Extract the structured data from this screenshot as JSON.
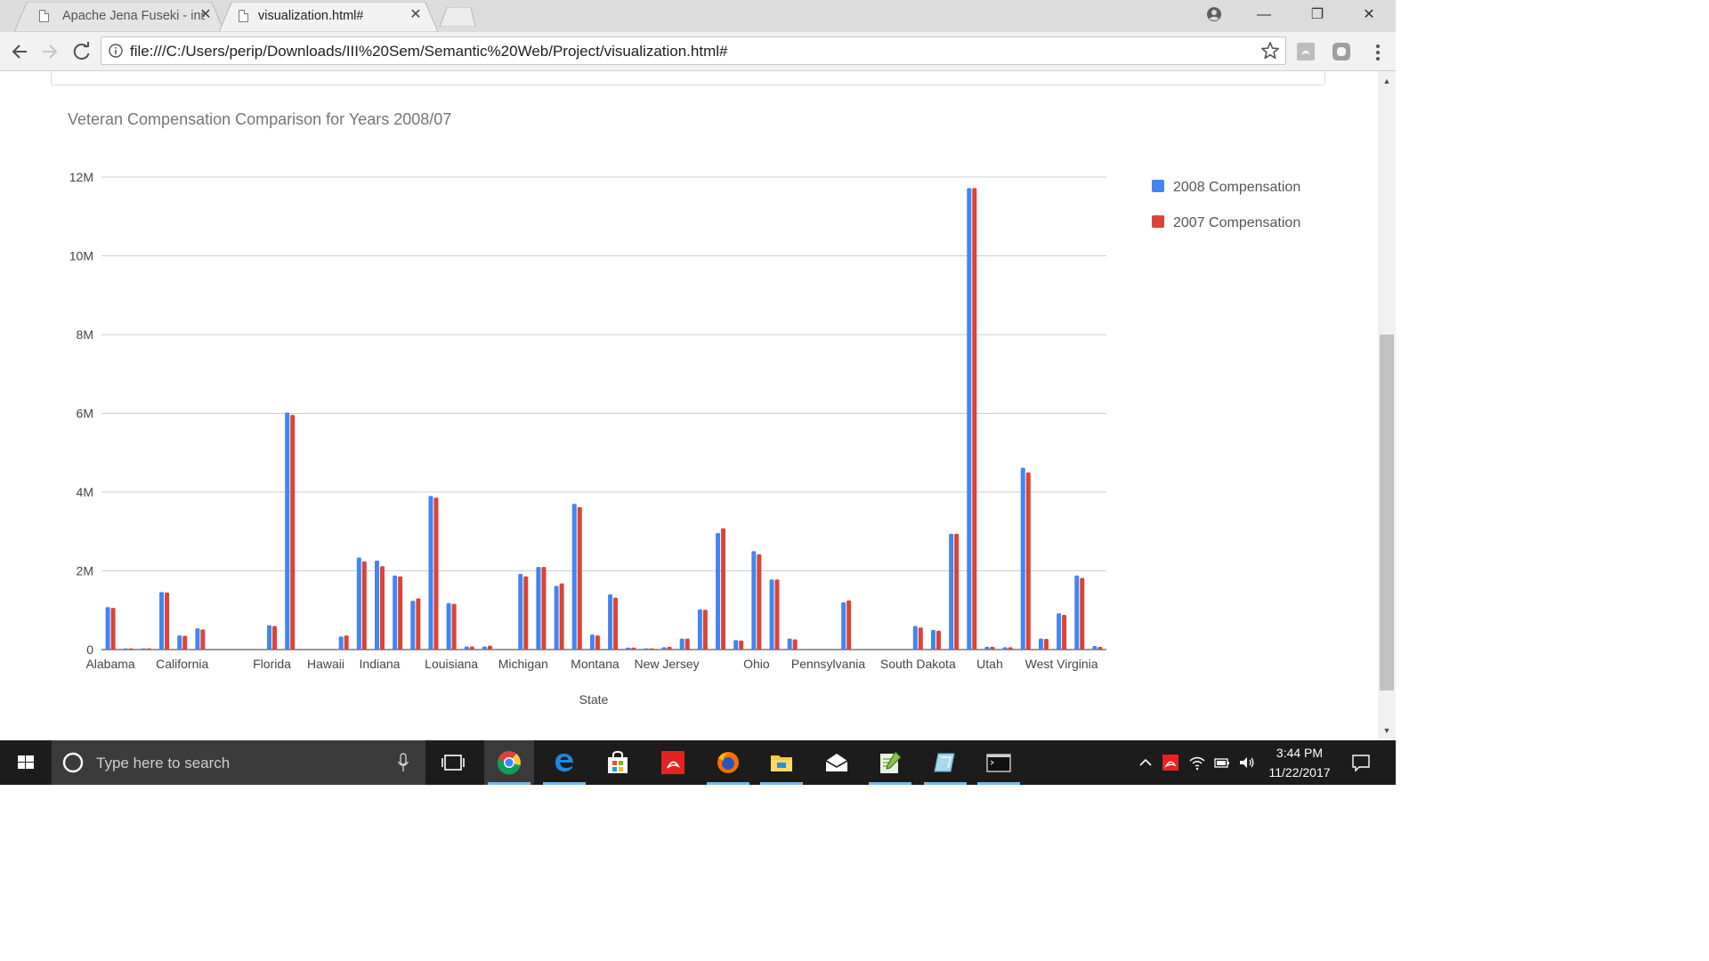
{
  "browser": {
    "tabs": [
      {
        "title": "Apache Jena Fuseki - insp",
        "close": "✕",
        "active": false
      },
      {
        "title": "visualization.html#",
        "close": "✕",
        "active": true
      }
    ],
    "url": "file:///C:/Users/perip/Downloads/III%20Sem/Semantic%20Web/Project/visualization.html#",
    "window_buttons": {
      "minimize": "—",
      "maximize": "❐",
      "close": "✕"
    }
  },
  "chart_data": {
    "type": "bar",
    "title": "Veteran Compensation Comparison for Years 2008/07",
    "xlabel": "State",
    "ylabel": "",
    "ylim": [
      0,
      12000000
    ],
    "y_ticks": [
      0,
      2000000,
      4000000,
      6000000,
      8000000,
      10000000,
      12000000
    ],
    "y_tick_labels": [
      "0",
      "2M",
      "4M",
      "6M",
      "8M",
      "10M",
      "12M"
    ],
    "x_tick_labels": [
      {
        "index": 0,
        "label": "Alabama"
      },
      {
        "index": 4,
        "label": "California"
      },
      {
        "index": 9,
        "label": "Florida"
      },
      {
        "index": 12,
        "label": "Hawaii"
      },
      {
        "index": 15,
        "label": "Indiana"
      },
      {
        "index": 19,
        "label": "Louisiana"
      },
      {
        "index": 23,
        "label": "Michigan"
      },
      {
        "index": 27,
        "label": "Montana"
      },
      {
        "index": 31,
        "label": "New Jersey"
      },
      {
        "index": 36,
        "label": "Ohio"
      },
      {
        "index": 40,
        "label": "Pennsylvania"
      },
      {
        "index": 45,
        "label": "South Dakota"
      },
      {
        "index": 49,
        "label": "Utah"
      },
      {
        "index": 53,
        "label": "West Virginia"
      }
    ],
    "legend_position": "right",
    "grid": true,
    "series": [
      {
        "name": "2008 Compensation",
        "color": "#4285f4",
        "values": [
          1080000,
          30000,
          30000,
          1460000,
          360000,
          540000,
          0,
          0,
          0,
          620000,
          6020000,
          0,
          0,
          330000,
          2340000,
          2260000,
          1880000,
          1240000,
          3900000,
          1180000,
          80000,
          80000,
          0,
          1920000,
          2100000,
          1620000,
          3700000,
          380000,
          1400000,
          50000,
          30000,
          60000,
          280000,
          1020000,
          2960000,
          240000,
          2500000,
          1780000,
          280000,
          0,
          0,
          1200000,
          0,
          0,
          0,
          600000,
          500000,
          2940000,
          11720000,
          70000,
          60000,
          4620000,
          280000,
          920000,
          1880000,
          90000
        ]
      },
      {
        "name": "2007 Compensation",
        "color": "#db4437",
        "values": [
          1060000,
          30000,
          30000,
          1450000,
          350000,
          510000,
          0,
          0,
          0,
          600000,
          5960000,
          0,
          0,
          360000,
          2240000,
          2120000,
          1860000,
          1300000,
          3860000,
          1160000,
          80000,
          100000,
          0,
          1860000,
          2100000,
          1680000,
          3620000,
          360000,
          1320000,
          50000,
          30000,
          70000,
          280000,
          1010000,
          3080000,
          230000,
          2420000,
          1780000,
          260000,
          0,
          0,
          1250000,
          0,
          0,
          0,
          560000,
          480000,
          2940000,
          11720000,
          70000,
          60000,
          4500000,
          270000,
          880000,
          1820000,
          70000
        ]
      }
    ]
  },
  "scrollbar": {
    "up": "▲",
    "down": "▼"
  },
  "taskbar": {
    "search_placeholder": "Type here to search",
    "time": "3:44 PM",
    "date": "11/22/2017"
  }
}
